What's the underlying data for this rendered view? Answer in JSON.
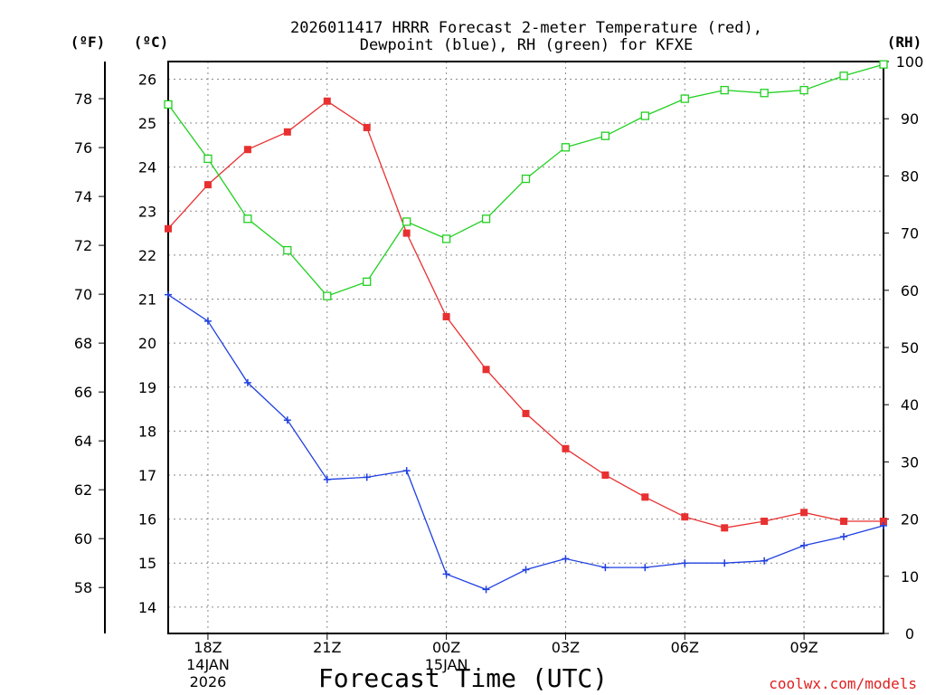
{
  "chart_data": {
    "type": "line",
    "title": [
      "2026011417 HRRR Forecast 2-meter Temperature (red),",
      "Dewpoint (blue), RH (green) for KFXE"
    ],
    "xlabel": "Forecast Time (UTC)",
    "credit": "coolwx.com/models",
    "units": {
      "fahrenheit": "(ºF)",
      "celsius": "(ºC)",
      "rh": "(RH)"
    },
    "x": [
      17,
      18,
      19,
      20,
      21,
      22,
      23,
      24,
      25,
      26,
      27,
      28,
      29,
      30,
      31,
      32,
      33,
      34,
      35
    ],
    "xlim": [
      17,
      35
    ],
    "xticks": [
      {
        "x": 18,
        "labels": [
          "18Z",
          "14JAN",
          "2026"
        ]
      },
      {
        "x": 21,
        "labels": [
          "21Z"
        ]
      },
      {
        "x": 24,
        "labels": [
          "00Z",
          "15JAN"
        ]
      },
      {
        "x": 27,
        "labels": [
          "03Z"
        ]
      },
      {
        "x": 30,
        "labels": [
          "06Z"
        ]
      },
      {
        "x": 33,
        "labels": [
          "09Z"
        ]
      }
    ],
    "ylim_c": [
      13.4,
      26.4
    ],
    "ylim_rh": [
      0,
      100
    ],
    "yticks_c": [
      14,
      15,
      16,
      17,
      18,
      19,
      20,
      21,
      22,
      23,
      24,
      25,
      26
    ],
    "yticks_f": [
      58,
      60,
      62,
      64,
      66,
      68,
      70,
      72,
      74,
      76,
      78
    ],
    "yticks_rh": [
      0,
      10,
      20,
      30,
      40,
      50,
      60,
      70,
      80,
      90,
      100
    ],
    "series": [
      {
        "name": "Temperature",
        "axis": "c",
        "color": "#e83030",
        "marker": "filled-square",
        "values": [
          22.6,
          23.6,
          24.4,
          24.8,
          25.5,
          24.9,
          22.5,
          20.6,
          19.4,
          18.4,
          17.6,
          17.0,
          16.5,
          16.05,
          15.8,
          15.95,
          16.15,
          15.95,
          15.95
        ]
      },
      {
        "name": "Dewpoint",
        "axis": "c",
        "color": "#2040e0",
        "marker": "plus",
        "values": [
          21.1,
          20.5,
          19.1,
          18.25,
          16.9,
          16.95,
          17.1,
          14.75,
          14.4,
          14.85,
          15.1,
          14.9,
          14.9,
          15.0,
          15.0,
          15.05,
          15.4,
          15.6,
          15.85
        ]
      },
      {
        "name": "RH",
        "axis": "rh",
        "color": "#20d020",
        "marker": "open-square",
        "values": [
          92.5,
          83.0,
          72.5,
          67.0,
          59.0,
          61.5,
          72.0,
          69.0,
          72.5,
          79.5,
          85.0,
          87.0,
          90.5,
          93.5,
          95.0,
          94.5,
          95.0,
          97.5,
          99.5
        ]
      }
    ]
  }
}
